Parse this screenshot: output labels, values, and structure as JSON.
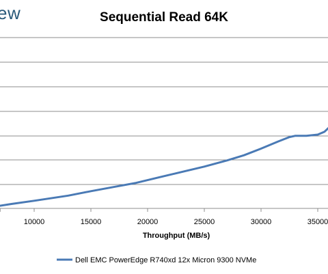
{
  "branding": {
    "logo_text": "ew"
  },
  "chart_data": {
    "type": "line",
    "title": "Sequential Read 64K",
    "xlabel": "Throughput (MB/s)",
    "ylabel": "",
    "x_ticks": [
      10000,
      15000,
      20000,
      25000,
      30000,
      35000
    ],
    "x_tick_labels": [
      "10000",
      "15000",
      "20000",
      "25000",
      "30000",
      "35000"
    ],
    "xlim": [
      6900,
      36500
    ],
    "grid": true,
    "legend_position": "bottom",
    "series": [
      {
        "name": "Dell EMC PowerEdge R740xd 12x Micron 9300 NVMe",
        "color": "#4a7ab5",
        "x": [
          6900,
          8000,
          10000,
          12000,
          13000,
          15000,
          17000,
          19000,
          21000,
          23000,
          25000,
          27000,
          28500,
          30000,
          31500,
          32500,
          33000,
          34000,
          35000,
          35600,
          36200,
          36500
        ],
        "y": [
          0.1,
          0.18,
          0.31,
          0.45,
          0.52,
          0.7,
          0.87,
          1.04,
          1.26,
          1.48,
          1.7,
          1.95,
          2.16,
          2.43,
          2.72,
          2.9,
          2.95,
          2.95,
          3.0,
          3.12,
          3.38,
          3.55
        ]
      }
    ]
  }
}
